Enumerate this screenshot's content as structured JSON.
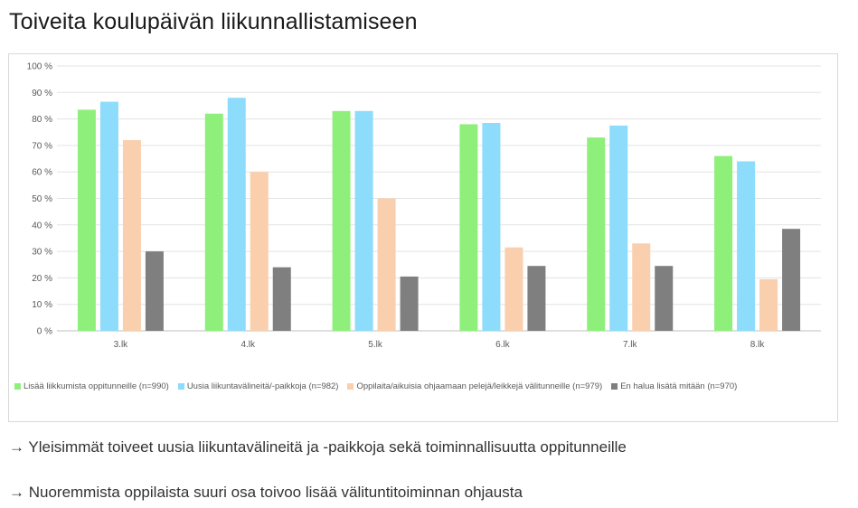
{
  "page": {
    "title": "Toiveita koulupäivän liikunnallistamiseen",
    "notes": [
      "→ Yleisimmät toiveet uusia liikuntavälineitä ja -paikkoja sekä toiminnallisuutta oppitunneille",
      "→ Nuoremmista oppilaista suuri osa toivoo lisää välituntitoiminnan ohjausta"
    ]
  },
  "chart_data": {
    "type": "bar",
    "categories": [
      "3.lk",
      "4.lk",
      "5.lk",
      "6.lk",
      "7.lk",
      "8.lk"
    ],
    "series": [
      {
        "name": "Lisää liikkumista oppitunneille (n=990)",
        "color": "#8ef07a",
        "values": [
          83.5,
          82,
          83,
          78,
          73,
          66
        ]
      },
      {
        "name": "Uusia liikuntavälineitä/-paikkoja (n=982)",
        "color": "#8ddcfb",
        "values": [
          86.5,
          88,
          83,
          78.5,
          77.5,
          64
        ]
      },
      {
        "name": "Oppilaita/aikuisia ohjaamaan pelejä/leikkejä välitunneille (n=979)",
        "color": "#f9cfad",
        "values": [
          72,
          60,
          50,
          31.5,
          33,
          19.5
        ]
      },
      {
        "name": "En halua lisätä mitään (n=970)",
        "color": "#7f7f7f",
        "values": [
          30,
          24,
          20.5,
          24.5,
          24.5,
          38.5
        ]
      }
    ],
    "yticks": [
      "0 %",
      "10 %",
      "20 %",
      "30 %",
      "40 %",
      "50 %",
      "60 %",
      "70 %",
      "80 %",
      "90 %",
      "100 %"
    ],
    "ylim": [
      0,
      100
    ],
    "grid": true,
    "legend": "bottom"
  }
}
